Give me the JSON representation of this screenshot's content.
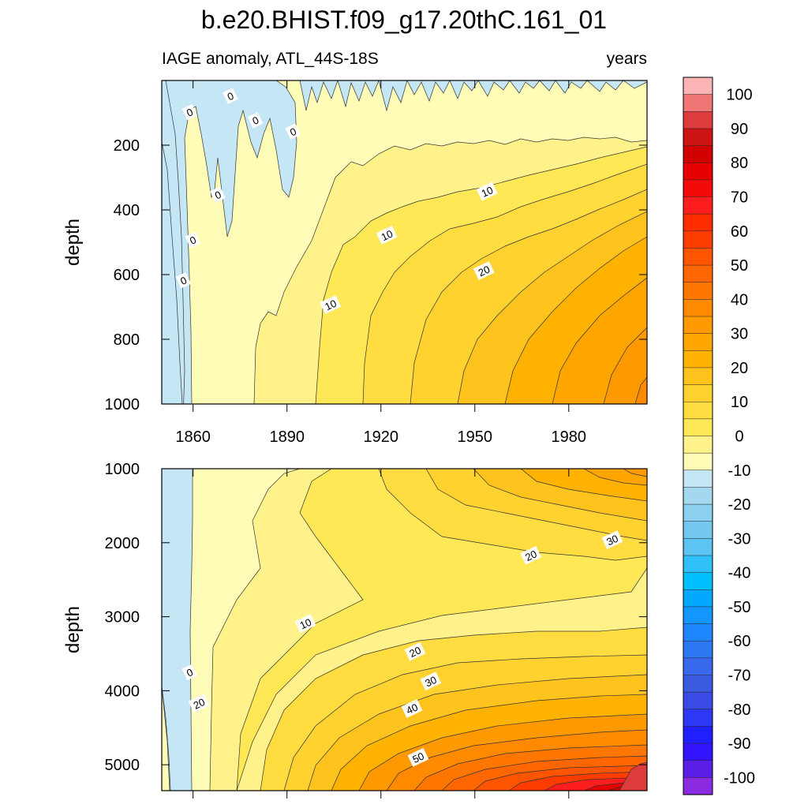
{
  "chart_data": {
    "type": "heatmap",
    "title": "b.e20.BHIST.f09_g17.20thC.161_01",
    "subtitle_left": "IAGE anomaly, ATL_44S-18S",
    "subtitle_right": "years",
    "ylabel": "depth",
    "xlim": [
      1850,
      2005
    ],
    "x_ticks": [
      1860,
      1890,
      1920,
      1950,
      1980
    ],
    "panels": [
      {
        "name": "upper",
        "ylim": [
          0,
          1000
        ],
        "y_ticks": [
          200,
          400,
          600,
          800,
          1000
        ],
        "contour_labels": [
          {
            "text": "0",
            "x": 1859,
            "y": 100
          },
          {
            "text": "0",
            "x": 1872,
            "y": 50
          },
          {
            "text": "0",
            "x": 1880,
            "y": 125
          },
          {
            "text": "0",
            "x": 1892,
            "y": 160
          },
          {
            "text": "0",
            "x": 1868,
            "y": 355
          },
          {
            "text": "0",
            "x": 1860,
            "y": 495
          },
          {
            "text": "0",
            "x": 1857,
            "y": 620
          },
          {
            "text": "10",
            "x": 1954,
            "y": 345
          },
          {
            "text": "10",
            "x": 1922,
            "y": 480
          },
          {
            "text": "10",
            "x": 1904,
            "y": 695
          },
          {
            "text": "20",
            "x": 1953,
            "y": 590
          }
        ]
      },
      {
        "name": "lower",
        "ylim": [
          1000,
          5350
        ],
        "y_ticks": [
          1000,
          2000,
          3000,
          4000,
          5000
        ],
        "contour_labels": [
          {
            "text": "0",
            "x": 1859,
            "y": 3760
          },
          {
            "text": "10",
            "x": 1896,
            "y": 3100
          },
          {
            "text": "20",
            "x": 1862,
            "y": 4180
          },
          {
            "text": "20",
            "x": 1931,
            "y": 3480
          },
          {
            "text": "30",
            "x": 1936,
            "y": 3880
          },
          {
            "text": "40",
            "x": 1930,
            "y": 4250
          },
          {
            "text": "50",
            "x": 1932,
            "y": 4910
          },
          {
            "text": "20",
            "x": 1968,
            "y": 2180
          },
          {
            "text": "30",
            "x": 1994,
            "y": 1970
          }
        ]
      }
    ],
    "colorbar": {
      "labels": [
        "100",
        "90",
        "80",
        "70",
        "60",
        "50",
        "40",
        "30",
        "20",
        "10",
        "0",
        "-10",
        "-20",
        "-30",
        "-40",
        "-50",
        "-60",
        "-70",
        "-80",
        "-90",
        "-100"
      ],
      "colors": [
        "#fdb4b4",
        "#f07575",
        "#dc3c3c",
        "#cd1414",
        "#d20000",
        "#e60000",
        "#f50a0a",
        "#ff1e1e",
        "#ff2d00",
        "#ff3c00",
        "#ff5500",
        "#ff6600",
        "#ff7700",
        "#ff8a00",
        "#ff9900",
        "#ffa500",
        "#ffb300",
        "#ffc31e",
        "#ffd230",
        "#ffdc40",
        "#ffe855",
        "#fff28a",
        "#fffcb8",
        "#c5e6f5",
        "#a4d8ef",
        "#8cd0ef",
        "#74c8ef",
        "#5cc4f2",
        "#30c0f8",
        "#00bfff",
        "#05a8ff",
        "#1496ff",
        "#1e87ff",
        "#2d78f5",
        "#3869ec",
        "#3a5ae0",
        "#3a4be5",
        "#2d37f5",
        "#1f1fff",
        "#3214ff",
        "#5a1ee6",
        "#8a2be2"
      ]
    }
  }
}
